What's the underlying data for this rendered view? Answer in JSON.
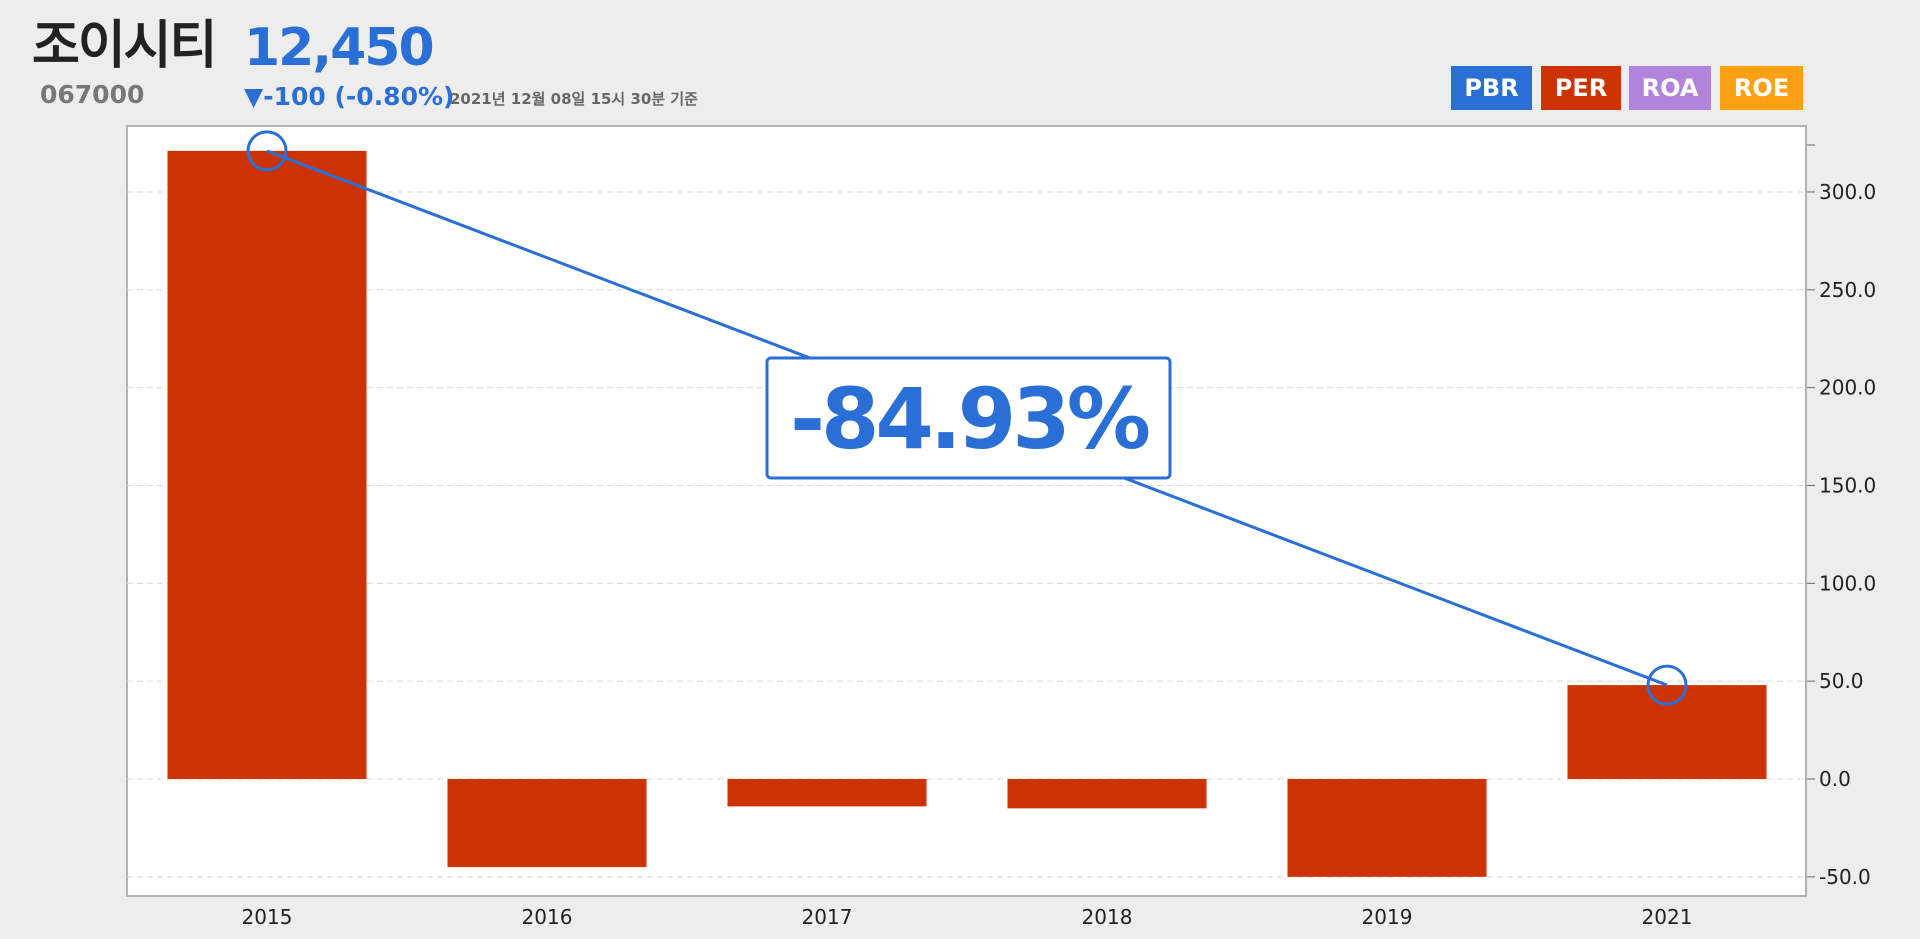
{
  "header": {
    "company_name": "조이시티",
    "price": "12,450",
    "code": "067000",
    "change": "▼-100 (-0.80%)",
    "timestamp": "2021년 12월 08일 15시 30분 기준"
  },
  "legend": {
    "items": [
      {
        "label": "PBR",
        "color": "#2a6fd6"
      },
      {
        "label": "PER",
        "color": "#cc3300"
      },
      {
        "label": "ROA",
        "color": "#b283dd"
      },
      {
        "label": "ROE",
        "color": "#ff9f14"
      }
    ]
  },
  "colors": {
    "bar": "#cc3300",
    "trend": "#2a6fd6",
    "background": "#ededed"
  },
  "chart_data": {
    "type": "bar",
    "categories": [
      "2015",
      "2016",
      "2017",
      "2018",
      "2019",
      "2021"
    ],
    "series": [
      {
        "name": "PER",
        "values": [
          321,
          -45,
          -14,
          -15,
          -50,
          48
        ]
      }
    ],
    "ylim": [
      -60,
      325
    ],
    "yticks": [
      -50,
      0,
      50,
      100,
      150,
      200,
      250,
      300
    ],
    "ytick_labels": [
      "-50.0",
      "0.0",
      "50.0",
      "100.0",
      "150.0",
      "200.0",
      "250.0",
      "300.0"
    ],
    "y_axis_position": "right",
    "grid": true,
    "annotation": {
      "text": "-84.93%",
      "from_category": "2015",
      "to_category": "2021"
    }
  }
}
